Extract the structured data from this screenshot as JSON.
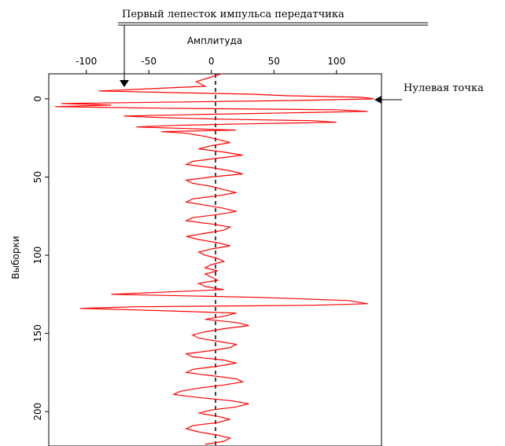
{
  "chart_data": {
    "type": "line",
    "orientation": "vertical-trace",
    "xlabel": "Амплитуда",
    "ylabel": "Выборки",
    "xlim": [
      -130,
      136
    ],
    "ylim": [
      -16,
      222
    ],
    "y_inverted": true,
    "x_ticks": [
      -100,
      -50,
      0,
      50,
      100
    ],
    "y_ticks": [
      0,
      50,
      100,
      150,
      200
    ],
    "x_tick_labels": [
      "-100",
      "-50",
      "0",
      "50",
      "100"
    ],
    "y_tick_labels": [
      "0",
      "50",
      "100",
      "150",
      "200"
    ],
    "x_axis_position": "top",
    "grid": false,
    "zero_line": {
      "x": 0,
      "style": "dashed",
      "color": "#000000"
    },
    "series": [
      {
        "color": "#ff0000",
        "points": [
          [
            8,
            -16
          ],
          [
            0,
            -14
          ],
          [
            -12,
            -11
          ],
          [
            -5,
            -8
          ],
          [
            -90,
            -5
          ],
          [
            30,
            -3
          ],
          [
            60,
            -2
          ],
          [
            120,
            -1
          ],
          [
            130,
            0
          ],
          [
            70,
            1
          ],
          [
            -20,
            2
          ],
          [
            -120,
            3
          ],
          [
            -80,
            4
          ],
          [
            -125,
            5
          ],
          [
            -40,
            6
          ],
          [
            100,
            7
          ],
          [
            125,
            8
          ],
          [
            60,
            9
          ],
          [
            -10,
            10
          ],
          [
            -70,
            11
          ],
          [
            -40,
            12
          ],
          [
            10,
            13
          ],
          [
            80,
            14
          ],
          [
            100,
            15
          ],
          [
            30,
            16
          ],
          [
            -30,
            17
          ],
          [
            -60,
            18
          ],
          [
            -20,
            19
          ],
          [
            20,
            20
          ],
          [
            -40,
            21
          ],
          [
            -20,
            22
          ],
          [
            -5,
            24
          ],
          [
            5,
            26
          ],
          [
            15,
            28
          ],
          [
            0,
            30
          ],
          [
            -10,
            32
          ],
          [
            10,
            34
          ],
          [
            25,
            36
          ],
          [
            5,
            38
          ],
          [
            -15,
            40
          ],
          [
            -20,
            42
          ],
          [
            0,
            44
          ],
          [
            15,
            46
          ],
          [
            25,
            48
          ],
          [
            0,
            50
          ],
          [
            -20,
            52
          ],
          [
            -15,
            54
          ],
          [
            0,
            56
          ],
          [
            10,
            58
          ],
          [
            20,
            60
          ],
          [
            5,
            62
          ],
          [
            -15,
            64
          ],
          [
            -20,
            66
          ],
          [
            -5,
            68
          ],
          [
            10,
            70
          ],
          [
            20,
            72
          ],
          [
            5,
            74
          ],
          [
            -15,
            76
          ],
          [
            -20,
            78
          ],
          [
            0,
            80
          ],
          [
            15,
            82
          ],
          [
            10,
            84
          ],
          [
            -5,
            86
          ],
          [
            -20,
            88
          ],
          [
            -10,
            90
          ],
          [
            5,
            92
          ],
          [
            15,
            94
          ],
          [
            0,
            96
          ],
          [
            -10,
            98
          ],
          [
            -5,
            100
          ],
          [
            5,
            102
          ],
          [
            10,
            104
          ],
          [
            0,
            106
          ],
          [
            -5,
            108
          ],
          [
            5,
            110
          ],
          [
            -5,
            112
          ],
          [
            0,
            114
          ],
          [
            5,
            116
          ],
          [
            -10,
            118
          ],
          [
            -5,
            120
          ],
          [
            10,
            122
          ],
          [
            -50,
            124
          ],
          [
            -80,
            125
          ],
          [
            40,
            127
          ],
          [
            110,
            129
          ],
          [
            125,
            131
          ],
          [
            80,
            132
          ],
          [
            -60,
            133
          ],
          [
            -105,
            134
          ],
          [
            -60,
            135
          ],
          [
            20,
            137
          ],
          [
            10,
            139
          ],
          [
            -5,
            141
          ],
          [
            20,
            143
          ],
          [
            30,
            145
          ],
          [
            10,
            147
          ],
          [
            -5,
            149
          ],
          [
            -15,
            151
          ],
          [
            -10,
            153
          ],
          [
            5,
            155
          ],
          [
            20,
            157
          ],
          [
            15,
            159
          ],
          [
            0,
            161
          ],
          [
            -20,
            163
          ],
          [
            -15,
            165
          ],
          [
            10,
            167
          ],
          [
            20,
            169
          ],
          [
            5,
            171
          ],
          [
            -15,
            173
          ],
          [
            -20,
            175
          ],
          [
            0,
            177
          ],
          [
            20,
            179
          ],
          [
            25,
            181
          ],
          [
            10,
            183
          ],
          [
            -10,
            185
          ],
          [
            -25,
            187
          ],
          [
            -30,
            189
          ],
          [
            -10,
            191
          ],
          [
            15,
            193
          ],
          [
            30,
            195
          ],
          [
            20,
            197
          ],
          [
            0,
            199
          ],
          [
            -10,
            201
          ],
          [
            5,
            203
          ],
          [
            15,
            205
          ],
          [
            5,
            207
          ],
          [
            -15,
            209
          ],
          [
            -20,
            211
          ],
          [
            -10,
            213
          ],
          [
            5,
            215
          ],
          [
            15,
            217
          ],
          [
            10,
            219
          ],
          [
            -5,
            221
          ]
        ]
      }
    ],
    "annotations": [
      {
        "text": "Первый лепесток импульса передатчика",
        "target": [
          -88,
          -5
        ]
      },
      {
        "text": "Нулевая точка",
        "target": [
          130,
          0
        ]
      }
    ]
  }
}
